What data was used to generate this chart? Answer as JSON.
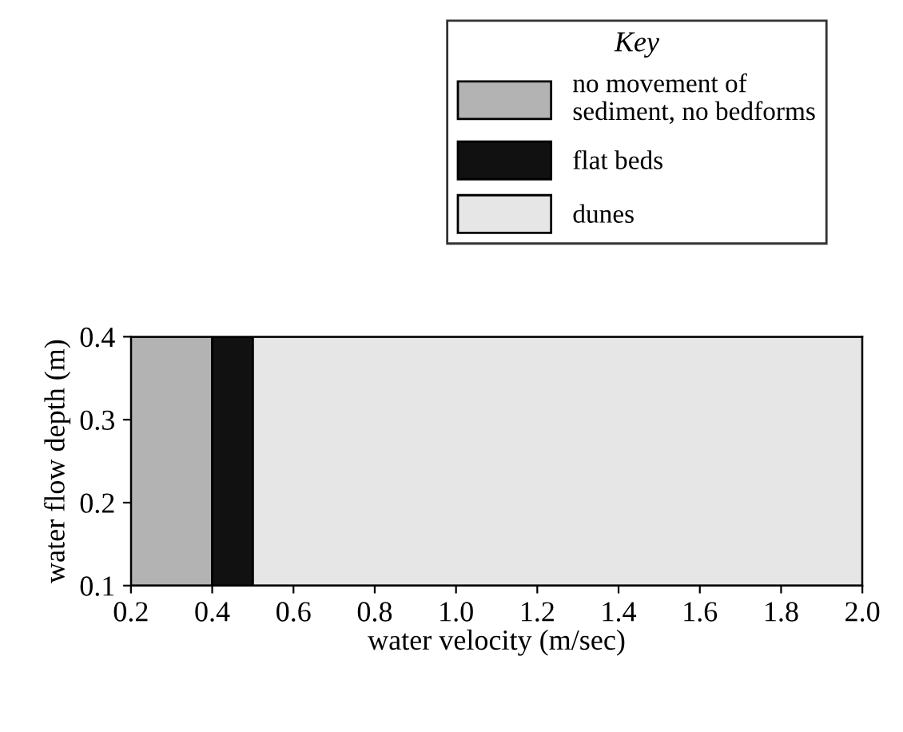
{
  "chart_data": {
    "type": "area",
    "xlabel": "water velocity (m/sec)",
    "ylabel": "water flow depth (m)",
    "legend_title": "Key",
    "xlim": [
      0.2,
      2.0
    ],
    "xticks": [
      {
        "value": 0.2,
        "label": "0.2"
      },
      {
        "value": 0.4,
        "label": "0.4"
      },
      {
        "value": 0.6,
        "label": "0.6"
      },
      {
        "value": 0.8,
        "label": "0.8"
      },
      {
        "value": 1.0,
        "label": "1.0"
      },
      {
        "value": 1.2,
        "label": "1.2"
      },
      {
        "value": 1.4,
        "label": "1.4"
      },
      {
        "value": 1.6,
        "label": "1.6"
      },
      {
        "value": 1.8,
        "label": "1.8"
      },
      {
        "value": 2.0,
        "label": "2.0"
      }
    ],
    "ylim": [
      0.1,
      0.4
    ],
    "yticks": [
      0.1,
      0.2,
      0.3,
      0.4
    ],
    "series": [
      {
        "name": "no movement of\nsediment, no bedforms",
        "color": "#b3b3b3",
        "x": [
          0.2,
          0.4
        ],
        "values": [
          0.4,
          0.4
        ]
      },
      {
        "name": "flat beds",
        "color": "#111111",
        "x": [
          0.4,
          0.5
        ],
        "values": [
          0.4,
          0.4
        ]
      },
      {
        "name": "dunes",
        "color": "#e6e6e6",
        "x": [
          0.5,
          2.0
        ],
        "values": [
          0.4,
          0.4
        ]
      }
    ],
    "legend": "top right"
  }
}
